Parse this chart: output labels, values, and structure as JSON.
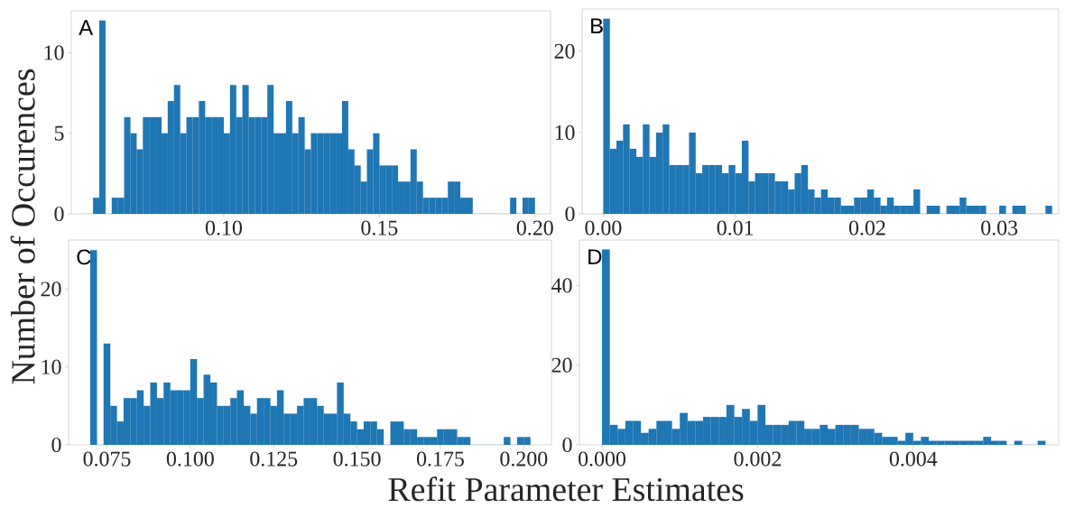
{
  "chart_data": [
    {
      "type": "histogram",
      "title": "A",
      "color": "#1f77b4",
      "bins": [
        0.056,
        0.058,
        0.06,
        0.062,
        0.064,
        0.066,
        0.068,
        0.07,
        0.072,
        0.074,
        0.076,
        0.078,
        0.08,
        0.082,
        0.084,
        0.086,
        0.088,
        0.09,
        0.092,
        0.094,
        0.096,
        0.098,
        0.1,
        0.102,
        0.104,
        0.106,
        0.108,
        0.11,
        0.112,
        0.114,
        0.116,
        0.118,
        0.12,
        0.122,
        0.124,
        0.126,
        0.128,
        0.13,
        0.132,
        0.134,
        0.136,
        0.138,
        0.14,
        0.142,
        0.144,
        0.146,
        0.148,
        0.15,
        0.152,
        0.154,
        0.156,
        0.158,
        0.16,
        0.162,
        0.164,
        0.166,
        0.168,
        0.17,
        0.172,
        0.174,
        0.176,
        0.178,
        0.18,
        0.182,
        0.184,
        0.186,
        0.188,
        0.19,
        0.192,
        0.194,
        0.196,
        0.198,
        0.2
      ],
      "values": [
        0,
        1,
        12,
        0,
        1,
        1,
        6,
        5,
        4,
        6,
        6,
        6,
        5,
        7,
        8,
        5,
        6,
        6,
        7,
        6,
        6,
        6,
        5,
        8,
        6,
        8,
        6,
        6,
        6,
        8,
        5,
        5,
        7,
        5,
        6,
        4,
        5,
        5,
        5,
        5,
        5,
        7,
        4,
        3,
        2,
        4,
        5,
        3,
        3,
        3,
        2,
        2,
        4,
        2,
        1,
        1,
        1,
        1,
        2,
        2,
        1,
        1,
        0,
        0,
        0,
        0,
        0,
        0,
        1,
        0,
        1,
        1
      ],
      "xlim": [
        0.051,
        0.205
      ],
      "ylim": [
        0,
        12.6
      ],
      "xticks": [
        {
          "value": 0.1,
          "label": "0.10"
        },
        {
          "value": 0.15,
          "label": "0.15"
        },
        {
          "value": 0.2,
          "label": "0.20"
        }
      ],
      "yticks": [
        0,
        5,
        10
      ]
    },
    {
      "type": "histogram",
      "title": "B",
      "color": "#1f77b4",
      "bins": [
        0,
        0.0005,
        0.001,
        0.0015,
        0.002,
        0.0025,
        0.003,
        0.0035,
        0.004,
        0.0045,
        0.005,
        0.0055,
        0.006,
        0.0065,
        0.007,
        0.0075,
        0.008,
        0.0085,
        0.009,
        0.0095,
        0.01,
        0.0105,
        0.011,
        0.0115,
        0.012,
        0.0125,
        0.013,
        0.0135,
        0.014,
        0.0145,
        0.015,
        0.0155,
        0.016,
        0.0165,
        0.017,
        0.0175,
        0.018,
        0.0185,
        0.019,
        0.0195,
        0.02,
        0.0205,
        0.021,
        0.0215,
        0.022,
        0.0225,
        0.023,
        0.0235,
        0.024,
        0.0245,
        0.025,
        0.0255,
        0.026,
        0.0265,
        0.027,
        0.0275,
        0.028,
        0.0285,
        0.029,
        0.0295,
        0.03,
        0.0305,
        0.031,
        0.0315,
        0.032,
        0.0325,
        0.033,
        0.0335,
        0.034
      ],
      "values": [
        24,
        8,
        9,
        11,
        8,
        7,
        11,
        7,
        10,
        11,
        6,
        6,
        6,
        10,
        5,
        6,
        6,
        6,
        5,
        6,
        5,
        9,
        4,
        5,
        5,
        5,
        4,
        4,
        3,
        5,
        6,
        3,
        2,
        3,
        2,
        2,
        1,
        1,
        2,
        2,
        3,
        2,
        1,
        2,
        1,
        1,
        1,
        3,
        0,
        1,
        1,
        0,
        1,
        1,
        2,
        1,
        1,
        1,
        0,
        0,
        1,
        0,
        1,
        1,
        0,
        0,
        0,
        1
      ],
      "xlim": [
        -0.0016,
        0.0345
      ],
      "ylim": [
        0,
        25.2
      ],
      "xticks": [
        {
          "value": 0,
          "label": "0.00"
        },
        {
          "value": 0.01,
          "label": "0.01"
        },
        {
          "value": 0.02,
          "label": "0.02"
        },
        {
          "value": 0.03,
          "label": "0.03"
        }
      ],
      "yticks": [
        0,
        10,
        20
      ]
    },
    {
      "type": "histogram",
      "title": "C",
      "color": "#1f77b4",
      "ylabel": "Number of Occurences",
      "xlabel": "Refit Parameter Estimates",
      "bins": [
        0.07,
        0.072,
        0.074,
        0.076,
        0.078,
        0.08,
        0.082,
        0.084,
        0.086,
        0.088,
        0.09,
        0.092,
        0.094,
        0.096,
        0.098,
        0.1,
        0.102,
        0.104,
        0.106,
        0.108,
        0.11,
        0.112,
        0.114,
        0.116,
        0.118,
        0.12,
        0.122,
        0.124,
        0.126,
        0.128,
        0.13,
        0.132,
        0.134,
        0.136,
        0.138,
        0.14,
        0.142,
        0.144,
        0.146,
        0.148,
        0.15,
        0.152,
        0.154,
        0.156,
        0.158,
        0.16,
        0.162,
        0.164,
        0.166,
        0.168,
        0.17,
        0.172,
        0.174,
        0.176,
        0.178,
        0.18,
        0.182,
        0.184,
        0.186,
        0.188,
        0.19,
        0.192,
        0.194,
        0.196,
        0.198,
        0.2,
        0.202
      ],
      "values": [
        25,
        0,
        13,
        5,
        3,
        6,
        6,
        7,
        5,
        8,
        6,
        8,
        7,
        7,
        7,
        11,
        6,
        9,
        8,
        5,
        5,
        6,
        7,
        5,
        4,
        6,
        6,
        5,
        7,
        4,
        4,
        5,
        6,
        6,
        5,
        4,
        4,
        8,
        4,
        3,
        2,
        3,
        3,
        2,
        0,
        3,
        3,
        2,
        2,
        1,
        1,
        1,
        2,
        2,
        2,
        1,
        1,
        0,
        0,
        0,
        0,
        0,
        1,
        0,
        1,
        1
      ],
      "xlim": [
        0.0635,
        0.2083
      ],
      "ylim": [
        0,
        26.3
      ],
      "xticks": [
        {
          "value": 0.075,
          "label": "0.075"
        },
        {
          "value": 0.1,
          "label": "0.100"
        },
        {
          "value": 0.125,
          "label": "0.125"
        },
        {
          "value": 0.15,
          "label": "0.150"
        },
        {
          "value": 0.175,
          "label": "0.175"
        },
        {
          "value": 0.2,
          "label": "0.200"
        }
      ],
      "yticks": [
        0,
        10,
        20
      ]
    },
    {
      "type": "histogram",
      "title": "D",
      "color": "#1f77b4",
      "bins": [
        0,
        0.0001,
        0.0002,
        0.0003,
        0.0004,
        0.0005,
        0.0006,
        0.0007,
        0.0008,
        0.0009,
        0.001,
        0.0011,
        0.0012,
        0.0013,
        0.0014,
        0.0015,
        0.0016,
        0.0017,
        0.0018,
        0.0019,
        0.002,
        0.0021,
        0.0022,
        0.0023,
        0.0024,
        0.0025,
        0.0026,
        0.0027,
        0.0028,
        0.0029,
        0.003,
        0.0031,
        0.0032,
        0.0033,
        0.0034,
        0.0035,
        0.0036,
        0.0037,
        0.0038,
        0.0039,
        0.004,
        0.0041,
        0.0042,
        0.0043,
        0.0044,
        0.0045,
        0.0046,
        0.0047,
        0.0048,
        0.0049,
        0.005,
        0.0051,
        0.0052,
        0.0053,
        0.0054,
        0.0055,
        0.0056,
        0.0057
      ],
      "values": [
        49,
        5,
        4,
        6,
        6,
        3,
        4,
        6,
        6,
        4,
        8,
        6,
        6,
        7,
        7,
        7,
        10,
        7,
        9,
        6,
        10,
        5,
        5,
        5,
        6,
        6,
        4,
        4,
        5,
        4,
        5,
        5,
        5,
        4,
        4,
        3,
        2,
        2,
        1,
        3,
        1,
        2,
        1,
        1,
        1,
        1,
        1,
        1,
        1,
        2,
        1,
        1,
        0,
        1,
        0,
        0,
        1
      ],
      "xlim": [
        -0.00029,
        0.00587
      ],
      "ylim": [
        0,
        51.4
      ],
      "xticks": [
        {
          "value": 0,
          "label": "0.000"
        },
        {
          "value": 0.002,
          "label": "0.002"
        },
        {
          "value": 0.004,
          "label": "0.004"
        }
      ],
      "yticks": [
        0,
        20,
        40
      ]
    }
  ]
}
